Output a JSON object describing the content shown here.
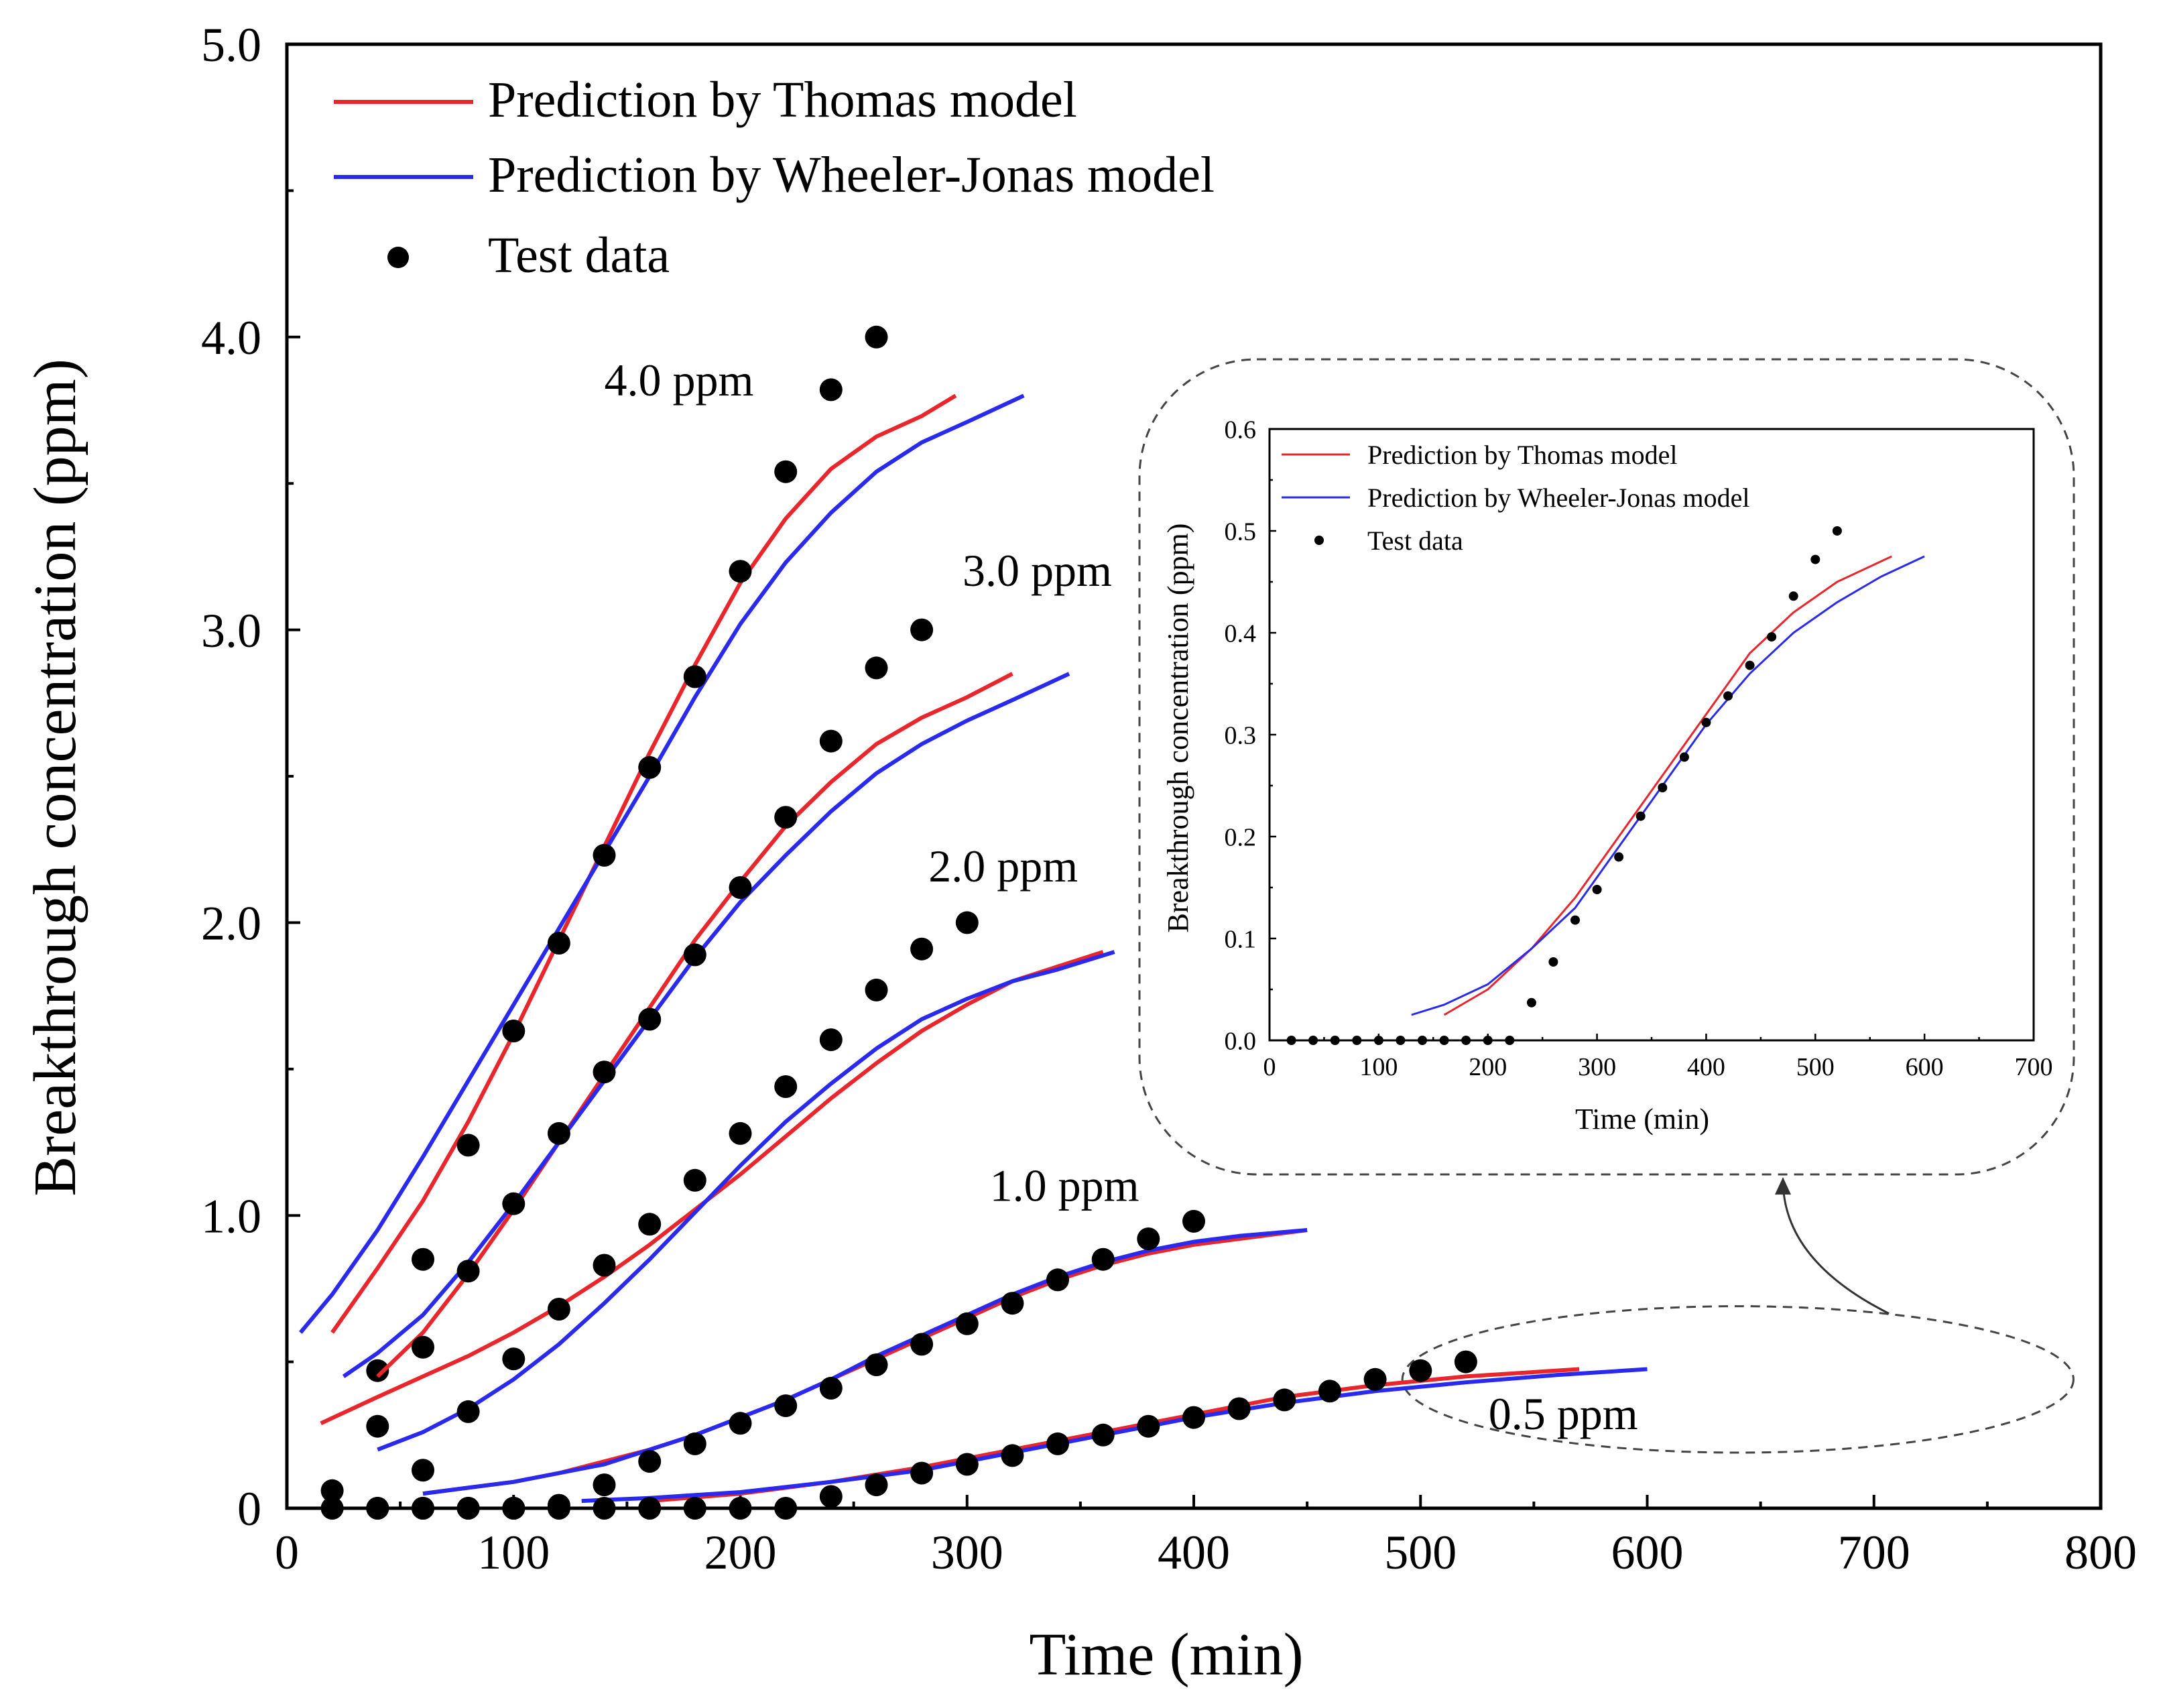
{
  "chart_data": [
    {
      "type": "line+scatter",
      "role": "main",
      "title": "",
      "xlabel": "Time (min)",
      "ylabel": "Breakthrough concentration (ppm)",
      "xlim": [
        0,
        800
      ],
      "ylim": [
        0,
        5.0
      ],
      "xticks": [
        0,
        100,
        200,
        300,
        400,
        500,
        600,
        700,
        800
      ],
      "xtick_labels": [
        "0",
        "100",
        "200",
        "300",
        "400",
        "500",
        "600",
        "700",
        "800"
      ],
      "yticks": [
        0,
        1.0,
        2.0,
        3.0,
        4.0,
        5.0
      ],
      "ytick_labels": [
        "0",
        "1.0",
        "2.0",
        "3.0",
        "4.0",
        "5.0"
      ],
      "grid": false,
      "legend": {
        "placement": "top-left",
        "entries": [
          {
            "label": "Prediction by Thomas model",
            "kind": "line",
            "color": "#e8262c"
          },
          {
            "label": "Prediction by Wheeler-Jonas model",
            "kind": "line",
            "color": "#2a2aee"
          },
          {
            "label": "Test data",
            "kind": "marker",
            "color": "#000000"
          }
        ]
      },
      "annotations": [
        {
          "text": "4.0 ppm",
          "x": 140,
          "y": 3.8
        },
        {
          "text": "3.0 ppm",
          "x": 298,
          "y": 3.15
        },
        {
          "text": "2.0 ppm",
          "x": 283,
          "y": 2.14
        },
        {
          "text": "1.0 ppm",
          "x": 310,
          "y": 1.05
        },
        {
          "text": "0.5 ppm",
          "x": 530,
          "y": 0.27
        }
      ],
      "callout": {
        "ellipse_center": [
          640,
          0.44
        ],
        "ellipse_radii": [
          148,
          0.25
        ]
      },
      "series": [
        {
          "name": "Thomas 4.0 ppm",
          "kind": "line",
          "color": "#e8262c",
          "x": [
            20,
            40,
            60,
            80,
            100,
            120,
            140,
            160,
            180,
            200,
            220,
            240,
            260,
            280,
            295
          ],
          "y": [
            0.6,
            0.82,
            1.05,
            1.32,
            1.62,
            1.94,
            2.26,
            2.58,
            2.88,
            3.16,
            3.38,
            3.55,
            3.66,
            3.73,
            3.8
          ]
        },
        {
          "name": "Wheeler-Jonas 4.0 ppm",
          "kind": "line",
          "color": "#2a2aee",
          "x": [
            6,
            20,
            40,
            60,
            80,
            100,
            120,
            140,
            160,
            180,
            200,
            220,
            240,
            260,
            280,
            300,
            325
          ],
          "y": [
            0.6,
            0.73,
            0.95,
            1.2,
            1.46,
            1.72,
            1.98,
            2.24,
            2.5,
            2.77,
            3.02,
            3.23,
            3.4,
            3.54,
            3.64,
            3.71,
            3.8
          ]
        },
        {
          "name": "Test 4.0 ppm",
          "kind": "scatter",
          "color": "#000000",
          "x": [
            20,
            40,
            60,
            80,
            100,
            120,
            140,
            160,
            180,
            200,
            220,
            240,
            260
          ],
          "y": [
            0.06,
            0.47,
            0.85,
            1.24,
            1.63,
            1.93,
            2.23,
            2.53,
            2.84,
            3.2,
            3.54,
            3.82,
            4.0
          ]
        },
        {
          "name": "Thomas 3.0 ppm",
          "kind": "line",
          "color": "#e8262c",
          "x": [
            40,
            60,
            80,
            100,
            120,
            140,
            160,
            180,
            200,
            220,
            240,
            260,
            280,
            300,
            320
          ],
          "y": [
            0.45,
            0.6,
            0.8,
            1.02,
            1.25,
            1.48,
            1.71,
            1.94,
            2.14,
            2.33,
            2.48,
            2.61,
            2.7,
            2.77,
            2.85
          ]
        },
        {
          "name": "Wheeler-Jonas 3.0 ppm",
          "kind": "line",
          "color": "#2a2aee",
          "x": [
            25,
            40,
            60,
            80,
            100,
            120,
            140,
            160,
            180,
            200,
            220,
            240,
            260,
            280,
            300,
            320,
            345
          ],
          "y": [
            0.45,
            0.53,
            0.66,
            0.84,
            1.04,
            1.25,
            1.46,
            1.67,
            1.88,
            2.07,
            2.23,
            2.38,
            2.51,
            2.61,
            2.69,
            2.76,
            2.85
          ]
        },
        {
          "name": "Test 3.0 ppm",
          "kind": "scatter",
          "color": "#000000",
          "x": [
            40,
            60,
            80,
            100,
            120,
            140,
            160,
            180,
            200,
            220,
            240,
            260,
            280
          ],
          "y": [
            0.28,
            0.55,
            0.81,
            1.04,
            1.28,
            1.49,
            1.67,
            1.89,
            2.12,
            2.36,
            2.62,
            2.87,
            3.0
          ]
        },
        {
          "name": "Thomas 2.0 ppm",
          "kind": "line",
          "color": "#e8262c",
          "x": [
            15,
            40,
            60,
            80,
            100,
            120,
            140,
            160,
            180,
            200,
            220,
            240,
            260,
            280,
            300,
            320,
            340,
            360
          ],
          "y": [
            0.29,
            0.38,
            0.45,
            0.52,
            0.6,
            0.69,
            0.79,
            0.9,
            1.02,
            1.14,
            1.27,
            1.4,
            1.52,
            1.63,
            1.72,
            1.8,
            1.85,
            1.9
          ]
        },
        {
          "name": "Wheeler-Jonas 2.0 ppm",
          "kind": "line",
          "color": "#2a2aee",
          "x": [
            40,
            60,
            80,
            100,
            120,
            140,
            160,
            180,
            200,
            220,
            240,
            260,
            280,
            300,
            320,
            340,
            365
          ],
          "y": [
            0.2,
            0.26,
            0.34,
            0.44,
            0.56,
            0.7,
            0.85,
            1.01,
            1.17,
            1.32,
            1.45,
            1.57,
            1.67,
            1.74,
            1.8,
            1.84,
            1.9
          ]
        },
        {
          "name": "Test 2.0 ppm",
          "kind": "scatter",
          "color": "#000000",
          "x": [
            40,
            60,
            80,
            100,
            120,
            140,
            160,
            180,
            200,
            220,
            240,
            260,
            280,
            300
          ],
          "y": [
            0.0,
            0.13,
            0.33,
            0.51,
            0.68,
            0.83,
            0.97,
            1.12,
            1.28,
            1.44,
            1.6,
            1.77,
            1.91,
            2.0
          ]
        },
        {
          "name": "Thomas 1.0 ppm",
          "kind": "line",
          "color": "#e8262c",
          "x": [
            60,
            80,
            100,
            120,
            140,
            160,
            180,
            200,
            220,
            240,
            260,
            280,
            300,
            320,
            340,
            360,
            380,
            400,
            420,
            450
          ],
          "y": [
            0.05,
            0.07,
            0.09,
            0.12,
            0.16,
            0.2,
            0.25,
            0.31,
            0.37,
            0.44,
            0.51,
            0.58,
            0.65,
            0.72,
            0.78,
            0.83,
            0.87,
            0.9,
            0.92,
            0.95
          ]
        },
        {
          "name": "Wheeler-Jonas 1.0 ppm",
          "kind": "line",
          "color": "#2a2aee",
          "x": [
            60,
            80,
            100,
            120,
            140,
            160,
            180,
            200,
            220,
            240,
            260,
            280,
            300,
            320,
            340,
            360,
            380,
            400,
            420,
            450
          ],
          "y": [
            0.05,
            0.07,
            0.09,
            0.12,
            0.15,
            0.2,
            0.25,
            0.31,
            0.37,
            0.44,
            0.52,
            0.59,
            0.66,
            0.73,
            0.79,
            0.84,
            0.88,
            0.91,
            0.93,
            0.95
          ]
        },
        {
          "name": "Test 1.0 ppm",
          "kind": "scatter",
          "color": "#000000",
          "x": [
            60,
            80,
            100,
            120,
            140,
            160,
            180,
            200,
            220,
            240,
            260,
            280,
            300,
            320,
            340,
            360,
            380,
            400
          ],
          "y": [
            0.0,
            0.0,
            0.0,
            0.01,
            0.08,
            0.16,
            0.22,
            0.29,
            0.35,
            0.41,
            0.49,
            0.56,
            0.63,
            0.7,
            0.78,
            0.85,
            0.92,
            0.98
          ]
        },
        {
          "name": "Thomas 0.5 ppm",
          "kind": "line",
          "color": "#e8262c",
          "x": [
            160,
            200,
            240,
            280,
            320,
            360,
            400,
            440,
            480,
            520,
            570
          ],
          "y": [
            0.025,
            0.05,
            0.09,
            0.14,
            0.2,
            0.26,
            0.32,
            0.38,
            0.42,
            0.45,
            0.475
          ]
        },
        {
          "name": "Wheeler-Jonas 0.5 ppm",
          "kind": "line",
          "color": "#2a2aee",
          "x": [
            130,
            160,
            200,
            240,
            280,
            320,
            360,
            400,
            440,
            480,
            520,
            560,
            600
          ],
          "y": [
            0.025,
            0.035,
            0.055,
            0.09,
            0.13,
            0.19,
            0.25,
            0.31,
            0.36,
            0.4,
            0.43,
            0.455,
            0.475
          ]
        },
        {
          "name": "Test 0.5 ppm",
          "kind": "scatter",
          "color": "#000000",
          "x": [
            20,
            40,
            60,
            80,
            100,
            120,
            140,
            160,
            180,
            200,
            220,
            240,
            260,
            280,
            300,
            320,
            340,
            360,
            380,
            400,
            420,
            440,
            460,
            480,
            500,
            520
          ],
          "y": [
            0.0,
            0.0,
            0.0,
            0.0,
            0.0,
            0.0,
            0.0,
            0.0,
            0.0,
            0.0,
            0.0,
            0.04,
            0.08,
            0.12,
            0.15,
            0.18,
            0.22,
            0.25,
            0.28,
            0.31,
            0.34,
            0.37,
            0.4,
            0.44,
            0.47,
            0.5
          ]
        }
      ]
    },
    {
      "type": "line+scatter",
      "role": "inset",
      "title": "",
      "xlabel": "Time (min)",
      "ylabel": "Breakthrough concentration (ppm)",
      "xlim": [
        0,
        700
      ],
      "ylim": [
        0,
        0.6
      ],
      "xticks": [
        0,
        100,
        200,
        300,
        400,
        500,
        600,
        700
      ],
      "xtick_labels": [
        "0",
        "100",
        "200",
        "300",
        "400",
        "500",
        "600",
        "700"
      ],
      "yticks": [
        0,
        0.1,
        0.2,
        0.3,
        0.4,
        0.5,
        0.6
      ],
      "ytick_labels": [
        "0.0",
        "0.1",
        "0.2",
        "0.3",
        "0.4",
        "0.5",
        "0.6"
      ],
      "grid": false,
      "legend": {
        "placement": "top-left",
        "entries": [
          {
            "label": "Prediction by Thomas model",
            "kind": "line",
            "color": "#e8262c"
          },
          {
            "label": "Prediction by Wheeler-Jonas model",
            "kind": "line",
            "color": "#2a2aee"
          },
          {
            "label": "Test data",
            "kind": "marker",
            "color": "#000000"
          }
        ]
      },
      "series": [
        {
          "name": "Thomas 0.5 ppm",
          "kind": "line",
          "color": "#e8262c",
          "x": [
            160,
            200,
            240,
            280,
            320,
            360,
            400,
            440,
            480,
            520,
            570
          ],
          "y": [
            0.025,
            0.05,
            0.09,
            0.14,
            0.2,
            0.26,
            0.32,
            0.38,
            0.42,
            0.45,
            0.475
          ]
        },
        {
          "name": "Wheeler-Jonas 0.5 ppm",
          "kind": "line",
          "color": "#2a2aee",
          "x": [
            130,
            160,
            200,
            240,
            280,
            320,
            360,
            400,
            440,
            480,
            520,
            560,
            600
          ],
          "y": [
            0.025,
            0.035,
            0.055,
            0.09,
            0.13,
            0.19,
            0.25,
            0.31,
            0.36,
            0.4,
            0.43,
            0.455,
            0.475
          ]
        },
        {
          "name": "Test 0.5 ppm",
          "kind": "scatter",
          "color": "#000000",
          "x": [
            20,
            40,
            60,
            80,
            100,
            120,
            140,
            160,
            180,
            200,
            220,
            240,
            260,
            280,
            300,
            320,
            340,
            360,
            380,
            400,
            420,
            440,
            460,
            480,
            500,
            520
          ],
          "y": [
            0.0,
            0.0,
            0.0,
            0.0,
            0.0,
            0.0,
            0.0,
            0.0,
            0.0,
            0.0,
            0.0,
            0.037,
            0.077,
            0.118,
            0.148,
            0.18,
            0.22,
            0.248,
            0.278,
            0.312,
            0.338,
            0.368,
            0.396,
            0.436,
            0.472,
            0.5
          ]
        }
      ]
    }
  ]
}
